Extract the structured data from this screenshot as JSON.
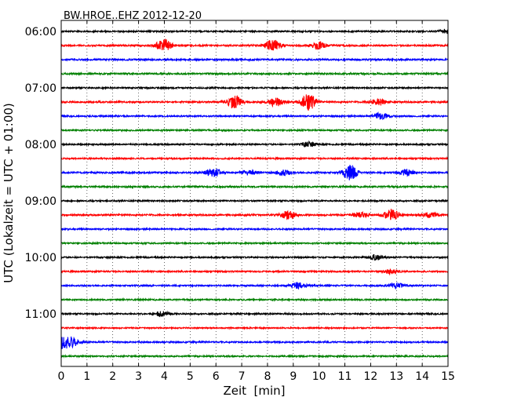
{
  "chart_data": {
    "type": "line",
    "title": "BW.HROE..EHZ 2012-12-20",
    "xlabel": "Zeit  [min]",
    "ylabel": "UTC (Lokalzeit = UTC + 01:00)",
    "xlim": [
      0,
      15
    ],
    "x_ticks": [
      0,
      1,
      2,
      3,
      4,
      5,
      6,
      7,
      8,
      9,
      10,
      11,
      12,
      13,
      14,
      15
    ],
    "x_tick_labels": [
      "0",
      "1",
      "2",
      "3",
      "4",
      "5",
      "6",
      "7",
      "8",
      "9",
      "10",
      "11",
      "12",
      "13",
      "14",
      "15"
    ],
    "grid": "vertical dotted lines at each minute",
    "y_ticks": [
      {
        "label": "06:00",
        "trace_index": 0
      },
      {
        "label": "07:00",
        "trace_index": 4
      },
      {
        "label": "08:00",
        "trace_index": 8
      },
      {
        "label": "09:00",
        "trace_index": 12
      },
      {
        "label": "10:00",
        "trace_index": 16
      },
      {
        "label": "11:00",
        "trace_index": 20
      }
    ],
    "trace_colors": [
      "#000000",
      "#ff0000",
      "#0000ff",
      "#008000"
    ],
    "series": [
      {
        "start": "06:00",
        "base_amp": 0.9,
        "events": [
          {
            "t": 15.0,
            "amp": 3
          }
        ]
      },
      {
        "start": "06:15",
        "base_amp": 1.0,
        "events": [
          {
            "t": 3.98,
            "amp": 8
          },
          {
            "t": 8.2,
            "amp": 7
          },
          {
            "t": 10.0,
            "amp": 4
          }
        ]
      },
      {
        "start": "06:30",
        "base_amp": 1.0,
        "events": []
      },
      {
        "start": "06:45",
        "base_amp": 1.0,
        "events": []
      },
      {
        "start": "07:00",
        "base_amp": 0.9,
        "events": []
      },
      {
        "start": "07:15",
        "base_amp": 1.0,
        "events": [
          {
            "t": 6.7,
            "amp": 8
          },
          {
            "t": 8.3,
            "amp": 5
          },
          {
            "t": 9.6,
            "amp": 10
          },
          {
            "t": 12.3,
            "amp": 4
          }
        ]
      },
      {
        "start": "07:30",
        "base_amp": 0.9,
        "events": [
          {
            "t": 12.4,
            "amp": 4
          }
        ]
      },
      {
        "start": "07:45",
        "base_amp": 0.9,
        "events": []
      },
      {
        "start": "08:00",
        "base_amp": 0.9,
        "events": [
          {
            "t": 9.6,
            "amp": 3
          }
        ]
      },
      {
        "start": "08:15",
        "base_amp": 0.9,
        "events": []
      },
      {
        "start": "08:30",
        "base_amp": 1.0,
        "events": [
          {
            "t": 5.9,
            "amp": 6
          },
          {
            "t": 7.3,
            "amp": 3
          },
          {
            "t": 8.6,
            "amp": 3
          },
          {
            "t": 11.2,
            "amp": 9
          },
          {
            "t": 13.4,
            "amp": 4
          }
        ]
      },
      {
        "start": "08:45",
        "base_amp": 1.0,
        "events": []
      },
      {
        "start": "09:00",
        "base_amp": 0.9,
        "events": []
      },
      {
        "start": "09:15",
        "base_amp": 1.0,
        "events": [
          {
            "t": 8.8,
            "amp": 5
          },
          {
            "t": 11.6,
            "amp": 3
          },
          {
            "t": 12.8,
            "amp": 7
          },
          {
            "t": 14.3,
            "amp": 3
          }
        ]
      },
      {
        "start": "09:30",
        "base_amp": 0.9,
        "events": []
      },
      {
        "start": "09:45",
        "base_amp": 0.9,
        "events": []
      },
      {
        "start": "10:00",
        "base_amp": 0.9,
        "events": [
          {
            "t": 12.2,
            "amp": 3
          }
        ]
      },
      {
        "start": "10:15",
        "base_amp": 0.9,
        "events": [
          {
            "t": 12.8,
            "amp": 3
          }
        ]
      },
      {
        "start": "10:30",
        "base_amp": 0.9,
        "events": [
          {
            "t": 9.2,
            "amp": 4
          },
          {
            "t": 13.0,
            "amp": 3
          }
        ]
      },
      {
        "start": "10:45",
        "base_amp": 0.9,
        "events": []
      },
      {
        "start": "11:00",
        "base_amp": 0.9,
        "events": [
          {
            "t": 3.9,
            "amp": 3
          }
        ]
      },
      {
        "start": "11:15",
        "base_amp": 0.8,
        "events": []
      },
      {
        "start": "11:30",
        "base_amp": 0.9,
        "events": [
          {
            "t": 0.1,
            "amp": 9
          },
          {
            "t": 0.5,
            "amp": 4
          }
        ]
      },
      {
        "start": "11:45",
        "base_amp": 0.9,
        "events": []
      }
    ]
  }
}
